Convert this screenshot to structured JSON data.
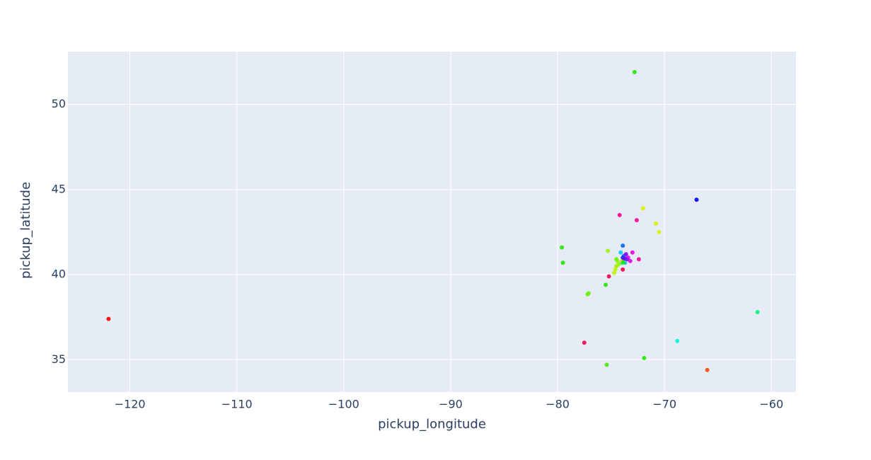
{
  "chart_data": {
    "type": "scatter",
    "title": "",
    "xlabel": "pickup_longitude",
    "ylabel": "pickup_latitude",
    "xlim": [
      -125.8,
      -57.7
    ],
    "ylim": [
      33.1,
      53.1
    ],
    "x_ticks": [
      -120,
      -110,
      -100,
      -90,
      -80,
      -70,
      -60
    ],
    "x_tick_labels": [
      "−120",
      "−110",
      "−100",
      "−90",
      "−80",
      "−70",
      "−60"
    ],
    "y_ticks": [
      35,
      40,
      45,
      50
    ],
    "y_tick_labels": [
      "35",
      "40",
      "45",
      "50"
    ],
    "grid": true,
    "legend": "none",
    "plot_background": "#e5ecf6",
    "points": [
      {
        "x": -122.0,
        "y": 37.4,
        "color": "#f31a1a"
      },
      {
        "x": -72.8,
        "y": 51.9,
        "color": "#39e61a"
      },
      {
        "x": -67.0,
        "y": 44.4,
        "color": "#1a1ae6"
      },
      {
        "x": -72.0,
        "y": 43.9,
        "color": "#d9f21a"
      },
      {
        "x": -74.2,
        "y": 43.5,
        "color": "#f21a9f"
      },
      {
        "x": -72.6,
        "y": 43.2,
        "color": "#f21a9f"
      },
      {
        "x": -70.8,
        "y": 43.0,
        "color": "#d9f21a"
      },
      {
        "x": -70.5,
        "y": 42.5,
        "color": "#d9f21a"
      },
      {
        "x": -79.6,
        "y": 41.6,
        "color": "#39e61a"
      },
      {
        "x": -79.5,
        "y": 40.7,
        "color": "#39e61a"
      },
      {
        "x": -75.3,
        "y": 41.4,
        "color": "#a6f21a"
      },
      {
        "x": -73.9,
        "y": 41.7,
        "color": "#1a73f2"
      },
      {
        "x": -73.0,
        "y": 41.3,
        "color": "#e61ae6"
      },
      {
        "x": -72.4,
        "y": 40.9,
        "color": "#f21a9f"
      },
      {
        "x": -74.1,
        "y": 41.3,
        "color": "#1ac6f2"
      },
      {
        "x": -73.8,
        "y": 41.1,
        "color": "#1a73f2"
      },
      {
        "x": -73.4,
        "y": 41.0,
        "color": "#e61ae6"
      },
      {
        "x": -73.2,
        "y": 40.8,
        "color": "#e61ae6"
      },
      {
        "x": -73.6,
        "y": 41.2,
        "color": "#8c1af2"
      },
      {
        "x": -73.5,
        "y": 40.9,
        "color": "#8c1af2"
      },
      {
        "x": -73.7,
        "y": 40.7,
        "color": "#1ac6f2"
      },
      {
        "x": -73.9,
        "y": 40.8,
        "color": "#f27f1a"
      },
      {
        "x": -73.95,
        "y": 40.75,
        "color": "#9f1af2"
      },
      {
        "x": -74.0,
        "y": 40.7,
        "color": "#1af2a6"
      },
      {
        "x": -74.3,
        "y": 40.6,
        "color": "#a6f21a"
      },
      {
        "x": -74.4,
        "y": 40.8,
        "color": "#a6f21a"
      },
      {
        "x": -74.5,
        "y": 40.5,
        "color": "#a6f21a"
      },
      {
        "x": -74.6,
        "y": 40.3,
        "color": "#c6f21a"
      },
      {
        "x": -74.7,
        "y": 40.1,
        "color": "#c6f21a"
      },
      {
        "x": -74.5,
        "y": 40.9,
        "color": "#73f21a"
      },
      {
        "x": -73.9,
        "y": 40.3,
        "color": "#f21a59"
      },
      {
        "x": -75.2,
        "y": 39.9,
        "color": "#f21a59"
      },
      {
        "x": -75.5,
        "y": 39.4,
        "color": "#39e61a"
      },
      {
        "x": -77.1,
        "y": 38.9,
        "color": "#73f21a"
      },
      {
        "x": -77.2,
        "y": 38.85,
        "color": "#73f21a"
      },
      {
        "x": -61.3,
        "y": 37.8,
        "color": "#1af28c"
      },
      {
        "x": -77.5,
        "y": 36.0,
        "color": "#f21a59"
      },
      {
        "x": -68.8,
        "y": 36.1,
        "color": "#1af2d9"
      },
      {
        "x": -71.9,
        "y": 35.1,
        "color": "#39e61a"
      },
      {
        "x": -75.4,
        "y": 34.7,
        "color": "#59e61a"
      },
      {
        "x": -66.0,
        "y": 34.4,
        "color": "#f2591a"
      },
      {
        "x": -73.95,
        "y": 40.78,
        "color": "#f2bf1a"
      },
      {
        "x": -73.85,
        "y": 40.72,
        "color": "#1ae61a"
      },
      {
        "x": -73.9,
        "y": 41.0,
        "color": "#1a40f2"
      },
      {
        "x": -73.75,
        "y": 40.95,
        "color": "#591af2"
      }
    ]
  }
}
